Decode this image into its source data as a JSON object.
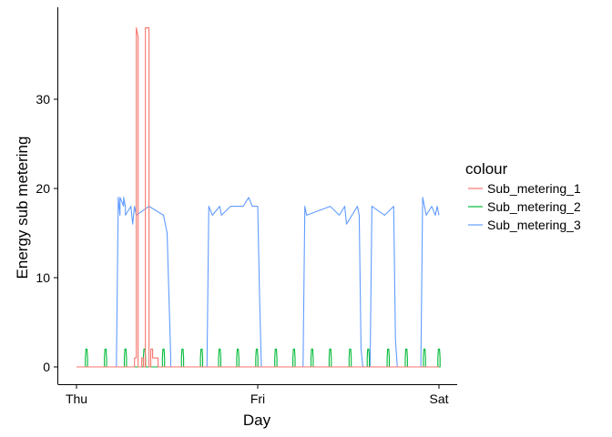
{
  "chart_data": {
    "type": "line",
    "xlabel": "Day",
    "ylabel": "Energy sub metering",
    "x_range_days": [
      0,
      2
    ],
    "x_ticks": [
      {
        "day": 0,
        "label": "Thu"
      },
      {
        "day": 1,
        "label": "Fri"
      },
      {
        "day": 2,
        "label": "Sat"
      }
    ],
    "ylim": [
      -2,
      39
    ],
    "y_ticks": [
      0,
      10,
      20,
      30
    ],
    "grid": false,
    "legend": {
      "title": "colour",
      "position": "right"
    },
    "series": [
      {
        "name": "Sub_metering_1",
        "color": "#F8766D",
        "x": [
          0,
          0.3,
          0.3,
          0.32,
          0.32,
          0.33,
          0.33,
          0.34,
          0.34,
          0.36,
          0.36,
          0.37,
          0.37,
          0.38,
          0.38,
          0.4,
          0.4,
          0.41,
          0.41,
          0.42,
          0.42,
          0.45,
          0.45,
          0.5,
          0.8,
          1.2,
          2
        ],
        "y": [
          0,
          0,
          0,
          0,
          1,
          1,
          38,
          37,
          0,
          0,
          1,
          1,
          0,
          0,
          38,
          38,
          0,
          0,
          2,
          2,
          1,
          1,
          0,
          0,
          0,
          0,
          0
        ]
      },
      {
        "name": "Sub_metering_2",
        "color": "#00BA38",
        "spike_days": [
          0.055,
          0.16,
          0.27,
          0.375,
          0.48,
          0.585,
          0.69,
          0.79,
          0.89,
          0.995,
          1.1,
          1.2,
          1.3,
          1.4,
          1.51,
          1.61,
          1.72,
          1.82,
          1.92,
          2.0
        ],
        "spike_value": 2,
        "shoulder_value": 1
      },
      {
        "name": "Sub_metering_3",
        "color": "#619CFF",
        "x": [
          0,
          0.22,
          0.23,
          0.23,
          0.24,
          0.24,
          0.26,
          0.26,
          0.27,
          0.27,
          0.3,
          0.31,
          0.32,
          0.33,
          0.4,
          0.48,
          0.5,
          0.52,
          0.52,
          0.53,
          0.72,
          0.73,
          0.75,
          0.79,
          0.8,
          0.85,
          0.92,
          0.95,
          0.97,
          1.0,
          1.01,
          1.02,
          1.25,
          1.26,
          1.27,
          1.4,
          1.45,
          1.48,
          1.49,
          1.55,
          1.56,
          1.57,
          1.58,
          1.62,
          1.63,
          1.7,
          1.75,
          1.76,
          1.77,
          1.8,
          1.9,
          1.91,
          1.92,
          1.93,
          1.96,
          1.98,
          1.99,
          2.0
        ],
        "y": [
          0,
          0,
          18,
          19,
          17,
          19,
          18,
          19,
          18,
          17,
          18,
          16,
          18,
          17,
          18,
          17,
          15,
          1,
          0,
          0,
          0,
          18,
          17,
          18,
          17,
          18,
          18,
          19,
          18,
          18,
          8,
          0,
          0,
          18,
          17,
          18,
          17,
          18,
          16,
          18,
          17,
          2,
          0,
          0,
          18,
          17,
          18,
          3,
          0,
          0,
          0,
          19,
          18,
          17,
          18,
          17,
          18,
          17
        ]
      }
    ]
  }
}
